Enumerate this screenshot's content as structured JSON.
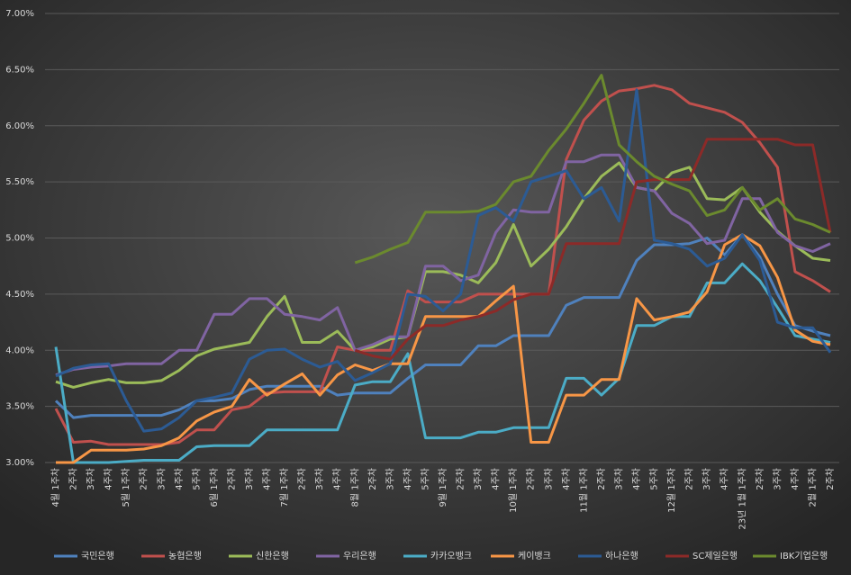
{
  "chart_data": {
    "type": "line",
    "categories": [
      "4월 1주차",
      "2주차",
      "3주차",
      "4주차",
      "5월 1주차",
      "2주차",
      "3주차",
      "4주차",
      "5주차",
      "6월 1주차",
      "2주차",
      "3주차",
      "4주차",
      "7월 1주차",
      "2주차",
      "3주차",
      "4주차",
      "8월 1주차",
      "2주차",
      "3주차",
      "4주차",
      "5주차",
      "9월 1주차",
      "2주차",
      "3주차",
      "4주차",
      "10월 1주차",
      "2주차",
      "3주차",
      "4주차",
      "11월 1주차",
      "2주차",
      "3주차",
      "4주차",
      "5주차",
      "12월 1주차",
      "2주차",
      "3주차",
      "4주차",
      "23년 1월 1주차",
      "2주차",
      "3주차",
      "4주차",
      "2월 1주차",
      "2주차"
    ],
    "ylim": [
      3,
      7
    ],
    "yticks": [
      {
        "value": 3,
        "label": "3.00%"
      },
      {
        "value": 3.5,
        "label": "3.50%"
      },
      {
        "value": 4,
        "label": "4.00%"
      },
      {
        "value": 4.5,
        "label": "4.50%"
      },
      {
        "value": 5,
        "label": "5.00%"
      },
      {
        "value": 5.5,
        "label": "5.50%"
      },
      {
        "value": 6,
        "label": "6.00%"
      },
      {
        "value": 6.5,
        "label": "6.50%"
      },
      {
        "value": 7,
        "label": "7.00%"
      }
    ],
    "grid": true,
    "legend": "bottom",
    "series": [
      {
        "name": "국민은행",
        "color": "#4f81bd",
        "values": [
          3.55,
          3.4,
          3.42,
          3.42,
          3.42,
          3.42,
          3.42,
          3.47,
          3.55,
          3.55,
          3.57,
          3.65,
          3.68,
          3.68,
          3.68,
          3.68,
          3.6,
          3.62,
          3.62,
          3.62,
          3.75,
          3.87,
          3.87,
          3.87,
          4.04,
          4.04,
          4.13,
          4.13,
          4.13,
          4.4,
          4.47,
          4.47,
          4.47,
          4.8,
          4.94,
          4.94,
          4.95,
          5.0,
          4.85,
          5.03,
          4.83,
          4.5,
          4.22,
          4.17,
          4.13
        ]
      },
      {
        "name": "농협은행",
        "color": "#c0504d",
        "values": [
          3.48,
          3.18,
          3.19,
          3.16,
          3.16,
          3.16,
          3.16,
          3.18,
          3.29,
          3.29,
          3.47,
          3.5,
          3.62,
          3.63,
          3.63,
          3.63,
          4.03,
          4.0,
          4.0,
          4.0,
          4.53,
          4.43,
          4.43,
          4.43,
          4.5,
          4.5,
          4.5,
          4.5,
          4.5,
          5.7,
          6.05,
          6.22,
          6.31,
          6.33,
          6.36,
          6.32,
          6.2,
          6.16,
          6.12,
          6.03,
          5.85,
          5.63,
          4.7,
          4.62,
          4.52
        ]
      },
      {
        "name": "신한은행",
        "color": "#9bbb59",
        "values": [
          3.72,
          3.67,
          3.71,
          3.74,
          3.71,
          3.71,
          3.73,
          3.82,
          3.95,
          4.01,
          4.04,
          4.07,
          4.3,
          4.48,
          4.07,
          4.07,
          4.17,
          4.0,
          4.03,
          4.1,
          4.12,
          4.7,
          4.7,
          4.67,
          4.6,
          4.78,
          5.12,
          4.75,
          4.9,
          5.1,
          5.35,
          5.55,
          5.67,
          5.45,
          5.42,
          5.58,
          5.63,
          5.35,
          5.34,
          5.45,
          5.23,
          5.06,
          4.93,
          4.82,
          4.8
        ]
      },
      {
        "name": "우리은행",
        "color": "#8064a2",
        "values": [
          3.78,
          3.83,
          3.85,
          3.86,
          3.88,
          3.88,
          3.88,
          4.0,
          4.0,
          4.32,
          4.32,
          4.46,
          4.46,
          4.32,
          4.3,
          4.27,
          4.38,
          4.0,
          4.05,
          4.12,
          4.12,
          4.75,
          4.75,
          4.62,
          4.67,
          5.05,
          5.25,
          5.23,
          5.23,
          5.68,
          5.68,
          5.74,
          5.74,
          5.45,
          5.42,
          5.22,
          5.13,
          4.95,
          4.98,
          5.35,
          5.35,
          5.05,
          4.93,
          4.88,
          4.95
        ]
      },
      {
        "name": "카카오뱅크",
        "color": "#4bacc6",
        "values": [
          4.03,
          3.0,
          3.0,
          3.0,
          3.01,
          3.02,
          3.02,
          3.02,
          3.14,
          3.15,
          3.15,
          3.15,
          3.29,
          3.29,
          3.29,
          3.29,
          3.29,
          3.69,
          3.72,
          3.72,
          3.97,
          3.22,
          3.22,
          3.22,
          3.27,
          3.27,
          3.31,
          3.31,
          3.31,
          3.75,
          3.75,
          3.6,
          3.75,
          4.22,
          4.22,
          4.3,
          4.3,
          4.6,
          4.6,
          4.77,
          4.62,
          4.38,
          4.13,
          4.1,
          4.07
        ]
      },
      {
        "name": "케이뱅크",
        "color": "#f79646",
        "values": [
          3.0,
          3.0,
          3.11,
          3.11,
          3.11,
          3.12,
          3.15,
          3.22,
          3.37,
          3.45,
          3.5,
          3.74,
          3.6,
          3.7,
          3.79,
          3.6,
          3.78,
          3.87,
          3.82,
          3.88,
          3.88,
          4.3,
          4.3,
          4.3,
          4.3,
          4.44,
          4.57,
          3.18,
          3.18,
          3.6,
          3.6,
          3.74,
          3.74,
          4.46,
          4.27,
          4.3,
          4.34,
          4.52,
          4.94,
          5.03,
          4.93,
          4.65,
          4.18,
          4.08,
          4.05
        ]
      },
      {
        "name": "하나은행",
        "color": "#2c5b94",
        "values": [
          3.77,
          3.84,
          3.87,
          3.88,
          3.55,
          3.28,
          3.3,
          3.4,
          3.55,
          3.58,
          3.62,
          3.92,
          4.0,
          4.01,
          3.92,
          3.85,
          3.9,
          3.73,
          3.8,
          3.88,
          4.5,
          4.48,
          4.35,
          4.5,
          5.2,
          5.27,
          5.15,
          5.5,
          5.55,
          5.6,
          5.35,
          5.45,
          5.15,
          6.32,
          4.98,
          4.95,
          4.9,
          4.75,
          4.82,
          5.03,
          4.8,
          4.25,
          4.2,
          4.2,
          3.98
        ]
      },
      {
        "name": "SC제일은행",
        "color": "#8c2a28",
        "values": [
          null,
          null,
          null,
          null,
          null,
          null,
          null,
          null,
          null,
          null,
          null,
          null,
          null,
          null,
          null,
          null,
          null,
          4.0,
          3.95,
          3.92,
          4.1,
          4.22,
          4.22,
          4.27,
          4.3,
          4.35,
          4.45,
          4.5,
          4.5,
          4.95,
          4.95,
          4.95,
          4.95,
          5.5,
          5.52,
          5.52,
          5.52,
          5.88,
          5.88,
          5.88,
          5.88,
          5.88,
          5.83,
          5.83,
          5.05
        ]
      },
      {
        "name": "IBK기업은행",
        "color": "#6b8a2e",
        "values": [
          null,
          null,
          null,
          null,
          null,
          null,
          null,
          null,
          null,
          null,
          null,
          null,
          null,
          null,
          null,
          null,
          null,
          4.78,
          4.83,
          4.9,
          4.96,
          5.23,
          5.23,
          5.23,
          5.24,
          5.3,
          5.5,
          5.55,
          5.78,
          5.97,
          6.2,
          6.45,
          5.83,
          5.68,
          5.55,
          5.48,
          5.42,
          5.2,
          5.25,
          5.45,
          5.25,
          5.35,
          5.17,
          5.12,
          5.05
        ]
      }
    ]
  }
}
